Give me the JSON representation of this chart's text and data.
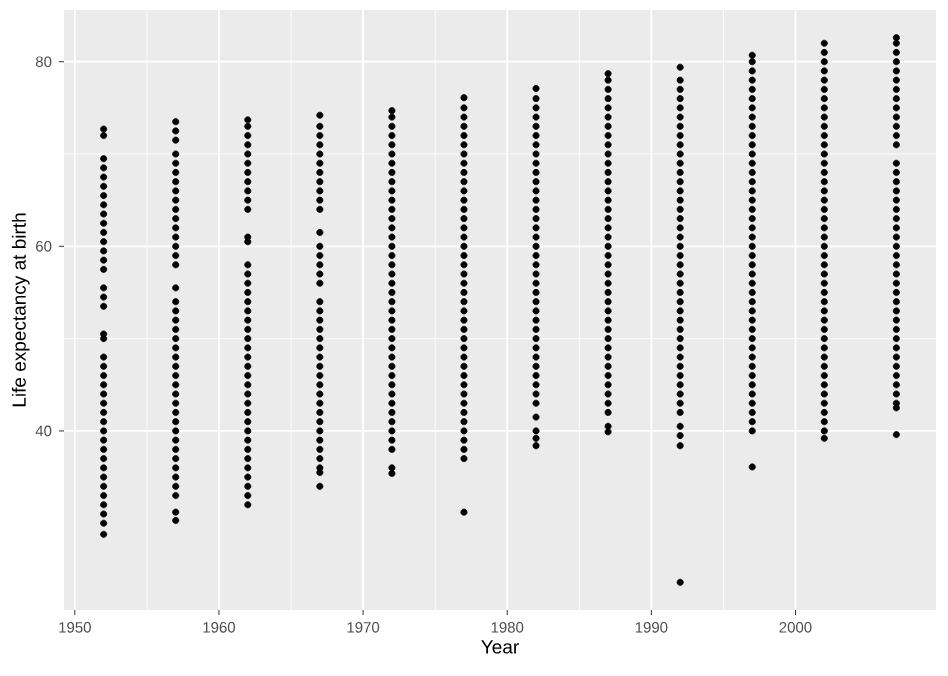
{
  "chart_data": {
    "type": "scatter",
    "xlabel": "Year",
    "ylabel": "Life expectancy at birth",
    "xlim": [
      1949.25,
      2009.75
    ],
    "ylim": [
      20.6,
      85.6
    ],
    "xticks": [
      1950,
      1960,
      1970,
      1980,
      1990,
      2000
    ],
    "yticks": [
      40,
      60,
      80
    ],
    "grid": true,
    "legend": false,
    "series": [
      {
        "color": "#000000",
        "x": [
          1952,
          1952,
          1952,
          1952,
          1952,
          1952,
          1952,
          1952,
          1952,
          1952,
          1952,
          1952,
          1952,
          1952,
          1952,
          1952,
          1952,
          1952,
          1952,
          1952,
          1952,
          1952,
          1952,
          1952,
          1952,
          1952,
          1952,
          1952,
          1952,
          1952,
          1952,
          1952,
          1952,
          1952,
          1952,
          1952,
          1952,
          1952,
          1952,
          1952
        ],
        "values": [
          28.8,
          30,
          31,
          32,
          33,
          34,
          35,
          36,
          37,
          38,
          39,
          40,
          41,
          42,
          43,
          44,
          45,
          46,
          47,
          48,
          50,
          50.5,
          53.5,
          54.5,
          55.5,
          57.5,
          58.5,
          59.5,
          60.5,
          61.5,
          62.5,
          63.5,
          64.5,
          65.5,
          66.5,
          67.5,
          68.5,
          69.5,
          72,
          72.7
        ]
      },
      {
        "color": "#000000",
        "x": [
          1957,
          1957,
          1957,
          1957,
          1957,
          1957,
          1957,
          1957,
          1957,
          1957,
          1957,
          1957,
          1957,
          1957,
          1957,
          1957,
          1957,
          1957,
          1957,
          1957,
          1957,
          1957,
          1957,
          1957,
          1957,
          1957,
          1957,
          1957,
          1957,
          1957,
          1957,
          1957,
          1957,
          1957,
          1957,
          1957,
          1957,
          1957,
          1957,
          1957,
          1957
        ],
        "values": [
          30.3,
          31.2,
          33,
          34,
          35,
          36,
          37,
          38,
          39,
          40,
          41,
          42,
          43,
          44,
          45,
          46,
          47,
          48,
          49,
          50,
          51,
          52,
          53,
          54,
          55.5,
          58,
          59,
          60,
          61,
          62,
          63,
          64,
          65,
          66,
          67,
          68,
          69,
          70,
          71.5,
          72.5,
          73.5
        ]
      },
      {
        "color": "#000000",
        "x": [
          1962,
          1962,
          1962,
          1962,
          1962,
          1962,
          1962,
          1962,
          1962,
          1962,
          1962,
          1962,
          1962,
          1962,
          1962,
          1962,
          1962,
          1962,
          1962,
          1962,
          1962,
          1962,
          1962,
          1962,
          1962,
          1962,
          1962,
          1962,
          1962,
          1962,
          1962,
          1962,
          1962,
          1962,
          1962,
          1962,
          1962,
          1962,
          1962,
          1962
        ],
        "values": [
          32,
          33,
          34,
          35,
          36,
          37,
          38,
          39,
          40,
          41,
          42,
          43,
          44,
          45,
          46,
          47,
          48,
          49,
          50,
          51,
          52,
          53,
          54,
          55,
          56,
          57,
          58,
          60.5,
          61,
          64,
          65,
          66,
          67,
          68,
          69,
          70,
          71,
          72,
          73,
          73.7
        ]
      },
      {
        "color": "#000000",
        "x": [
          1967,
          1967,
          1967,
          1967,
          1967,
          1967,
          1967,
          1967,
          1967,
          1967,
          1967,
          1967,
          1967,
          1967,
          1967,
          1967,
          1967,
          1967,
          1967,
          1967,
          1967,
          1967,
          1967,
          1967,
          1967,
          1967,
          1967,
          1967,
          1967,
          1967,
          1967,
          1967,
          1967,
          1967,
          1967,
          1967,
          1967,
          1967
        ],
        "values": [
          34,
          35.5,
          36,
          37,
          38,
          39,
          40,
          41,
          42,
          43,
          44,
          45,
          46,
          47,
          48,
          49,
          50,
          51,
          52,
          53,
          54,
          56,
          57,
          58,
          59,
          60,
          61.5,
          64,
          65,
          66,
          67,
          68,
          69,
          70,
          71,
          72,
          73,
          74.2
        ]
      },
      {
        "color": "#000000",
        "x": [
          1972,
          1972,
          1972,
          1972,
          1972,
          1972,
          1972,
          1972,
          1972,
          1972,
          1972,
          1972,
          1972,
          1972,
          1972,
          1972,
          1972,
          1972,
          1972,
          1972,
          1972,
          1972,
          1972,
          1972,
          1972,
          1972,
          1972,
          1972,
          1972,
          1972,
          1972,
          1972,
          1972,
          1972,
          1972,
          1972,
          1972,
          1972,
          1972,
          1972
        ],
        "values": [
          35.4,
          36,
          38,
          39,
          40,
          41,
          42,
          43,
          44,
          45,
          46,
          47,
          48,
          49,
          50,
          51,
          52,
          53,
          54,
          55,
          56,
          57,
          58,
          59,
          60,
          61,
          62,
          63,
          64,
          65,
          66,
          67,
          68,
          69,
          70,
          71,
          72,
          73,
          74,
          74.7
        ]
      },
      {
        "color": "#000000",
        "x": [
          1977,
          1977,
          1977,
          1977,
          1977,
          1977,
          1977,
          1977,
          1977,
          1977,
          1977,
          1977,
          1977,
          1977,
          1977,
          1977,
          1977,
          1977,
          1977,
          1977,
          1977,
          1977,
          1977,
          1977,
          1977,
          1977,
          1977,
          1977,
          1977,
          1977,
          1977,
          1977,
          1977,
          1977,
          1977,
          1977,
          1977,
          1977,
          1977,
          1977,
          1977
        ],
        "values": [
          31.2,
          37,
          38,
          39,
          40,
          41,
          42,
          43,
          44,
          45,
          46,
          47,
          48,
          49,
          50,
          51,
          52,
          53,
          54,
          55,
          56,
          57,
          58,
          59,
          60,
          61,
          62,
          63,
          64,
          65,
          66,
          67,
          68,
          69,
          70,
          71,
          72,
          73,
          74,
          75,
          76.1
        ]
      },
      {
        "color": "#000000",
        "x": [
          1982,
          1982,
          1982,
          1982,
          1982,
          1982,
          1982,
          1982,
          1982,
          1982,
          1982,
          1982,
          1982,
          1982,
          1982,
          1982,
          1982,
          1982,
          1982,
          1982,
          1982,
          1982,
          1982,
          1982,
          1982,
          1982,
          1982,
          1982,
          1982,
          1982,
          1982,
          1982,
          1982,
          1982,
          1982,
          1982,
          1982,
          1982,
          1982
        ],
        "values": [
          38.4,
          39.2,
          40,
          41.5,
          43,
          44,
          45,
          46,
          47,
          48,
          49,
          50,
          51,
          52,
          53,
          54,
          55,
          56,
          57,
          58,
          59,
          60,
          61,
          62,
          63,
          64,
          65,
          66,
          67,
          68,
          69,
          70,
          71,
          72,
          73,
          74,
          75,
          76,
          77.1
        ]
      },
      {
        "color": "#000000",
        "x": [
          1987,
          1987,
          1987,
          1987,
          1987,
          1987,
          1987,
          1987,
          1987,
          1987,
          1987,
          1987,
          1987,
          1987,
          1987,
          1987,
          1987,
          1987,
          1987,
          1987,
          1987,
          1987,
          1987,
          1987,
          1987,
          1987,
          1987,
          1987,
          1987,
          1987,
          1987,
          1987,
          1987,
          1987,
          1987,
          1987,
          1987,
          1987,
          1987,
          1987
        ],
        "values": [
          39.9,
          40.5,
          42,
          43,
          44,
          45,
          46,
          47,
          48,
          49,
          50,
          51,
          52,
          53,
          54,
          55,
          56,
          57,
          58,
          59,
          60,
          61,
          62,
          63,
          64,
          65,
          66,
          67,
          68,
          69,
          70,
          71,
          72,
          73,
          74,
          75,
          76,
          77,
          78,
          78.7
        ]
      },
      {
        "color": "#000000",
        "x": [
          1992,
          1992,
          1992,
          1992,
          1992,
          1992,
          1992,
          1992,
          1992,
          1992,
          1992,
          1992,
          1992,
          1992,
          1992,
          1992,
          1992,
          1992,
          1992,
          1992,
          1992,
          1992,
          1992,
          1992,
          1992,
          1992,
          1992,
          1992,
          1992,
          1992,
          1992,
          1992,
          1992,
          1992,
          1992,
          1992,
          1992,
          1992,
          1992,
          1992,
          1992,
          1992
        ],
        "values": [
          23.6,
          38.4,
          39.5,
          40.5,
          42,
          43,
          44,
          45,
          46,
          47,
          48,
          49,
          50,
          51,
          52,
          53,
          54,
          55,
          56,
          57,
          58,
          59,
          60,
          61,
          62,
          63,
          64,
          65,
          66,
          67,
          68,
          69,
          70,
          71,
          72,
          73,
          74,
          75,
          76,
          77,
          78,
          79.4
        ]
      },
      {
        "color": "#000000",
        "x": [
          1997,
          1997,
          1997,
          1997,
          1997,
          1997,
          1997,
          1997,
          1997,
          1997,
          1997,
          1997,
          1997,
          1997,
          1997,
          1997,
          1997,
          1997,
          1997,
          1997,
          1997,
          1997,
          1997,
          1997,
          1997,
          1997,
          1997,
          1997,
          1997,
          1997,
          1997,
          1997,
          1997,
          1997,
          1997,
          1997,
          1997,
          1997,
          1997,
          1997,
          1997,
          1997,
          1997
        ],
        "values": [
          36.1,
          40,
          41,
          42,
          43,
          44,
          45,
          46,
          47,
          48,
          49,
          50,
          51,
          52,
          53,
          54,
          55,
          56,
          57,
          58,
          59,
          60,
          61,
          62,
          63,
          64,
          65,
          66,
          67,
          68,
          69,
          70,
          71,
          72,
          73,
          74,
          75,
          76,
          77,
          78,
          79,
          80,
          80.7
        ]
      },
      {
        "color": "#000000",
        "x": [
          2002,
          2002,
          2002,
          2002,
          2002,
          2002,
          2002,
          2002,
          2002,
          2002,
          2002,
          2002,
          2002,
          2002,
          2002,
          2002,
          2002,
          2002,
          2002,
          2002,
          2002,
          2002,
          2002,
          2002,
          2002,
          2002,
          2002,
          2002,
          2002,
          2002,
          2002,
          2002,
          2002,
          2002,
          2002,
          2002,
          2002,
          2002,
          2002,
          2002,
          2002,
          2002,
          2002,
          2002
        ],
        "values": [
          39.2,
          40,
          41,
          42,
          43,
          44,
          45,
          46,
          47,
          48,
          49,
          50,
          51,
          52,
          53,
          54,
          55,
          56,
          57,
          58,
          59,
          60,
          61,
          62,
          63,
          64,
          65,
          66,
          67,
          68,
          69,
          70,
          71,
          72,
          73,
          74,
          75,
          76,
          77,
          78,
          79,
          80,
          81,
          82
        ]
      },
      {
        "color": "#000000",
        "x": [
          2007,
          2007,
          2007,
          2007,
          2007,
          2007,
          2007,
          2007,
          2007,
          2007,
          2007,
          2007,
          2007,
          2007,
          2007,
          2007,
          2007,
          2007,
          2007,
          2007,
          2007,
          2007,
          2007,
          2007,
          2007,
          2007,
          2007,
          2007,
          2007,
          2007,
          2007,
          2007,
          2007,
          2007,
          2007,
          2007,
          2007,
          2007,
          2007,
          2007,
          2007,
          2007
        ],
        "values": [
          39.6,
          42.5,
          43,
          44,
          45,
          46,
          47,
          48,
          49,
          50,
          51,
          52,
          53,
          54,
          55,
          56,
          57,
          58,
          59,
          60,
          61,
          62,
          63,
          64,
          65,
          66,
          67,
          68,
          69,
          71,
          72,
          73,
          74,
          75,
          76,
          77,
          78,
          79,
          80,
          81,
          82,
          82.6
        ]
      }
    ]
  }
}
